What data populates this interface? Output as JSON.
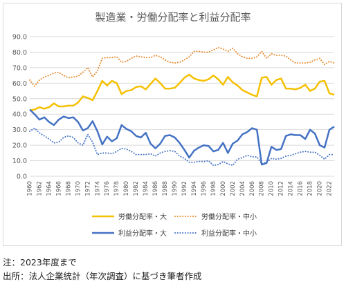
{
  "chart_data": {
    "type": "line",
    "title": "製造業・労働分配率と利益分配率",
    "xlabel": "",
    "ylabel": "",
    "ylim": [
      0,
      90
    ],
    "yticks": [
      "0.0",
      "10.0",
      "20.0",
      "30.0",
      "40.0",
      "50.0",
      "60.0",
      "70.0",
      "80.0",
      "90.0"
    ],
    "x": [
      1960,
      1961,
      1962,
      1963,
      1964,
      1965,
      1966,
      1967,
      1968,
      1969,
      1970,
      1971,
      1972,
      1973,
      1974,
      1975,
      1976,
      1977,
      1978,
      1979,
      1980,
      1981,
      1982,
      1983,
      1984,
      1985,
      1986,
      1987,
      1988,
      1989,
      1990,
      1991,
      1992,
      1993,
      1994,
      1995,
      1996,
      1997,
      1998,
      1999,
      2000,
      2001,
      2002,
      2003,
      2004,
      2005,
      2006,
      2007,
      2008,
      2009,
      2010,
      2011,
      2012,
      2013,
      2014,
      2015,
      2016,
      2017,
      2018,
      2019,
      2020,
      2021,
      2022,
      2023
    ],
    "xtick_labels": [
      "1960",
      "1962",
      "1964",
      "1966",
      "1968",
      "1970",
      "1972",
      "1974",
      "1976",
      "1978",
      "1980",
      "1982",
      "1984",
      "1986",
      "1988",
      "1990",
      "1992",
      "1994",
      "1996",
      "1998",
      "2000",
      "2002",
      "2004",
      "2006",
      "2008",
      "2010",
      "2012",
      "2014",
      "2016",
      "2018",
      "2020",
      "2022"
    ],
    "grid": true,
    "legend_position": "bottom",
    "series": [
      {
        "name": "労働分配率・大",
        "color": "#f5c000",
        "dash": "solid",
        "values": [
          42.5,
          43,
          44.5,
          43.5,
          44.5,
          47,
          45,
          45,
          45.5,
          45.5,
          47.5,
          51.5,
          50.5,
          49,
          55,
          61.5,
          58.5,
          61.5,
          60,
          53,
          55,
          55.5,
          57.5,
          58,
          56,
          59.5,
          63,
          60,
          56.5,
          56.5,
          57,
          60,
          63.5,
          65.5,
          63,
          62,
          61.5,
          62.5,
          65,
          62.5,
          59,
          64,
          60.5,
          58.5,
          55.5,
          54,
          52.5,
          51.5,
          63.5,
          64,
          59,
          62,
          63,
          56.5,
          56.5,
          56,
          57,
          59,
          55,
          56.5,
          61,
          61.5,
          53.5,
          52.5
        ]
      },
      {
        "name": "労働分配率・中小",
        "color": "#e88a2c",
        "dash": "dot",
        "values": [
          62,
          58,
          62,
          64,
          65,
          66.5,
          67,
          65,
          63.5,
          64,
          64.5,
          67,
          70,
          64,
          68,
          76,
          76.5,
          76.5,
          77,
          73.5,
          74,
          76,
          77.5,
          77,
          76.5,
          76.5,
          78,
          77,
          75,
          73.5,
          73,
          73.5,
          75,
          77,
          80.5,
          80.5,
          80,
          80,
          81.5,
          83,
          82,
          80.5,
          82.5,
          79,
          77,
          76,
          76,
          77,
          80.5,
          76,
          79,
          78,
          78,
          77.5,
          75,
          73,
          73,
          73,
          73.5,
          75,
          76,
          72,
          74,
          73
        ]
      },
      {
        "name": "利益分配率・大",
        "color": "#4472c4",
        "dash": "solid",
        "values": [
          43,
          40,
          36.5,
          38,
          35,
          33,
          36.5,
          38.5,
          37.5,
          38,
          35,
          29.5,
          31,
          35.5,
          29,
          20.5,
          25.5,
          22.5,
          24.5,
          33,
          30.5,
          29,
          26,
          25,
          28,
          21,
          18,
          21,
          26,
          26.5,
          25,
          21.5,
          17,
          12,
          16.5,
          18.5,
          20,
          19.5,
          16,
          17,
          21.5,
          15,
          21,
          23,
          27,
          28.5,
          31,
          30,
          7.5,
          8.5,
          19,
          17,
          17.5,
          26,
          27,
          26.5,
          26.5,
          24,
          30,
          27.5,
          20,
          18.5,
          30,
          32
        ]
      },
      {
        "name": "利益分配率・中小",
        "color": "#4472c4",
        "dash": "dot",
        "values": [
          29,
          31,
          28,
          26,
          24,
          21.5,
          22,
          25,
          26,
          25,
          21.5,
          20,
          27,
          22,
          14,
          15,
          15,
          14.5,
          16,
          18,
          17.5,
          16,
          14,
          14,
          14,
          14.5,
          13,
          15,
          16,
          16.5,
          16,
          13,
          11.5,
          9,
          9,
          9.5,
          9.5,
          10,
          7,
          7.5,
          9.5,
          8,
          7,
          11,
          12,
          13.5,
          12.5,
          12.5,
          8,
          9,
          11.5,
          11,
          11.5,
          13,
          13.5,
          14.5,
          15.5,
          16,
          15.5,
          15.5,
          13.5,
          11,
          14,
          14
        ]
      }
    ]
  },
  "notes": {
    "note1": "注：2023年度まで",
    "note2": "出所：法人企業統計（年次調査）に基づき筆者作成"
  }
}
